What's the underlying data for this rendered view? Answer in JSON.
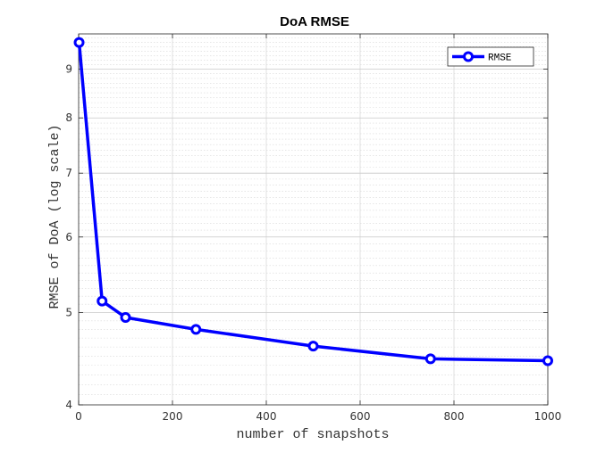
{
  "chart_data": {
    "type": "line",
    "title": "DoA RMSE",
    "xlabel": "number of snapshots",
    "ylabel": "RMSE of DoA  (log scale)",
    "xlim": [
      0,
      1000
    ],
    "ylim": [
      4,
      9.8
    ],
    "yscale": "log",
    "xticks": [
      0,
      200,
      400,
      600,
      800,
      1000
    ],
    "yticks": [
      4,
      5,
      6,
      7,
      8,
      9
    ],
    "grid": true,
    "minor_grid": true,
    "legend_position": "top-right",
    "series": [
      {
        "name": "RMSE",
        "color": "#0000ff",
        "marker": "circle",
        "x": [
          1,
          50,
          100,
          250,
          500,
          750,
          1000
        ],
        "y": [
          9.6,
          5.14,
          4.94,
          4.8,
          4.61,
          4.47,
          4.45
        ]
      }
    ]
  }
}
